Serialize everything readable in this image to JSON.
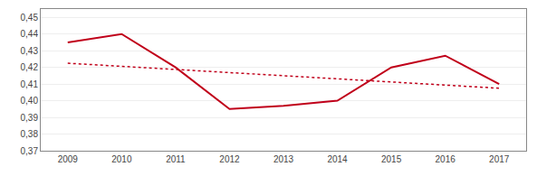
{
  "chart_data": {
    "type": "line",
    "x": [
      2009,
      2010,
      2011,
      2012,
      2013,
      2014,
      2015,
      2016,
      2017
    ],
    "series": [
      {
        "color": "#c0001a",
        "line_style": "solid",
        "values": [
          0.435,
          0.44,
          0.42,
          0.395,
          0.397,
          0.4,
          0.42,
          0.427,
          0.41
        ]
      },
      {
        "color": "#c0001a",
        "line_style": "dotted",
        "x": [
          2009,
          2017
        ],
        "values": [
          0.4225,
          0.4075
        ]
      }
    ],
    "xlim": [
      2008.5,
      2017.5
    ],
    "xticks": [
      2009,
      2010,
      2011,
      2012,
      2013,
      2014,
      2015,
      2016,
      2017
    ],
    "ylim": [
      0.37,
      0.455
    ],
    "yticks": [
      {
        "value": 0.37,
        "label": "0,37"
      },
      {
        "value": 0.38,
        "label": "0,38"
      },
      {
        "value": 0.39,
        "label": "0,39"
      },
      {
        "value": 0.4,
        "label": "0,40"
      },
      {
        "value": 0.41,
        "label": "0,41"
      },
      {
        "value": 0.42,
        "label": "0,42"
      },
      {
        "value": 0.43,
        "label": "0,43"
      },
      {
        "value": 0.44,
        "label": "0,44"
      },
      {
        "value": 0.45,
        "label": "0,45"
      }
    ],
    "grid": "y"
  }
}
